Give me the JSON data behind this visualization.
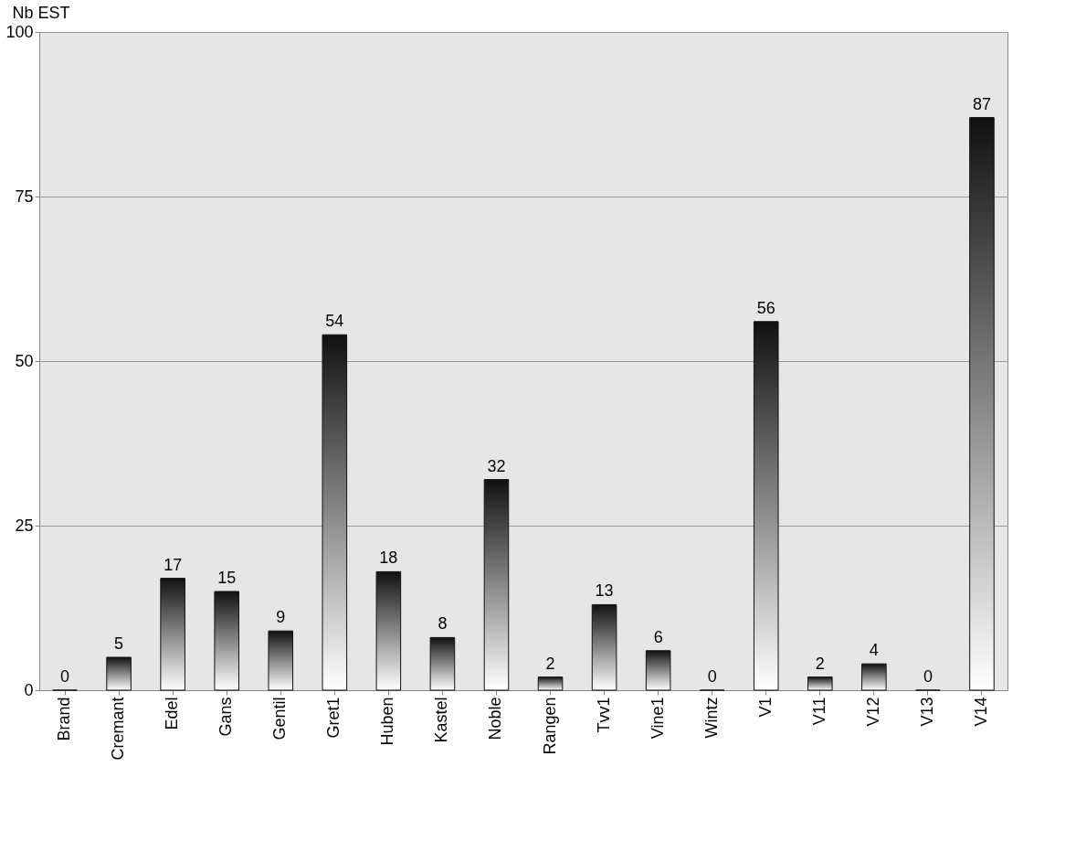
{
  "chart_data": {
    "type": "bar",
    "ylabel": "Nb EST",
    "categories": [
      "Brand",
      "Cremant",
      "Edel",
      "Gans",
      "Gentil",
      "Gret1",
      "Huben",
      "Kastel",
      "Noble",
      "Rangen",
      "Tvv1",
      "Vine1",
      "Wintz",
      "V1",
      "V11",
      "V12",
      "V13",
      "V14"
    ],
    "values": [
      0,
      5,
      17,
      15,
      9,
      54,
      18,
      8,
      32,
      2,
      13,
      6,
      0,
      56,
      2,
      4,
      0,
      87
    ],
    "color": "#111111",
    "ylim": [
      0,
      100
    ],
    "yticks": [
      0,
      25,
      50,
      75,
      100
    ],
    "grid": "y",
    "data_labels": true
  }
}
